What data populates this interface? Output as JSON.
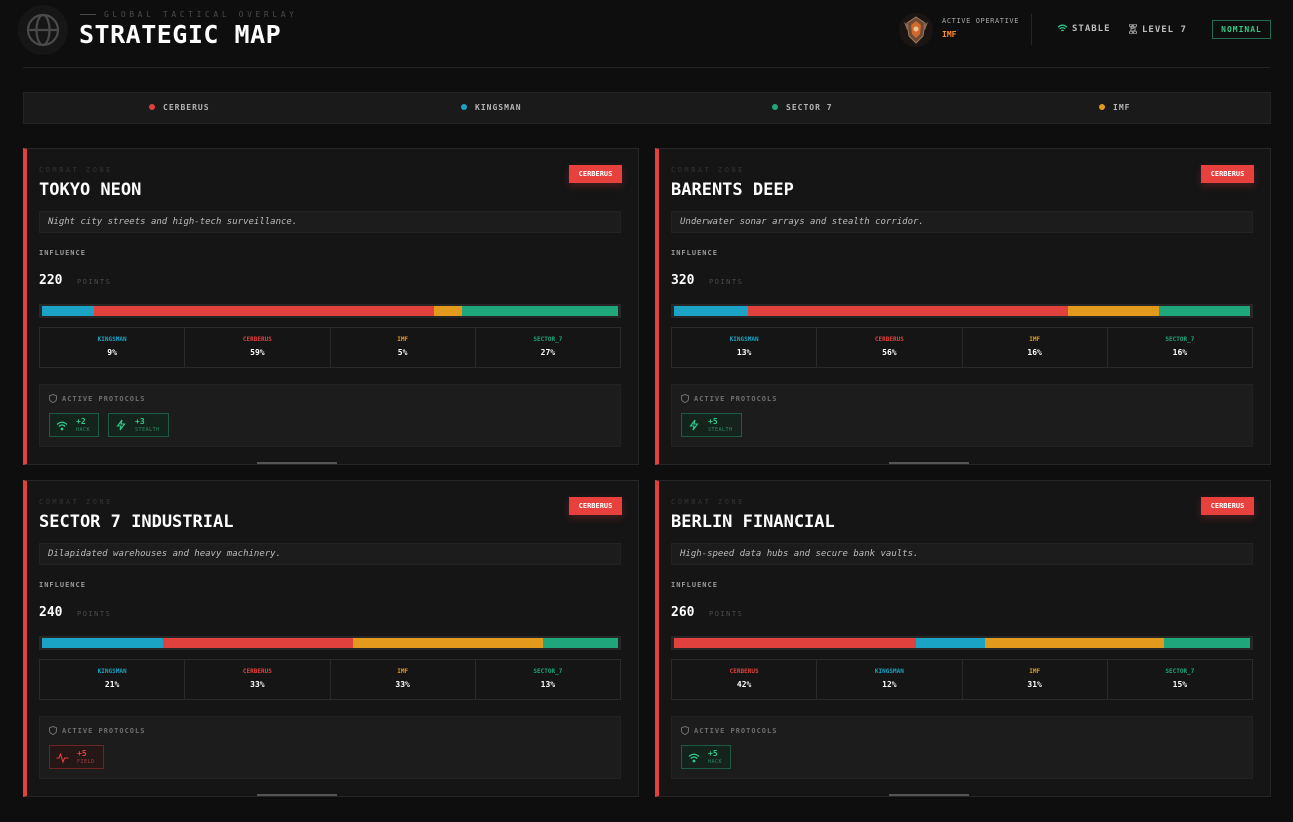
{
  "header": {
    "subtitle": "GLOBAL TACTICAL OVERLAY",
    "title": "STRATEGIC MAP",
    "operative_label": "ACTIVE OPERATIVE",
    "operative_value": "IMF",
    "stable_label": "STABLE",
    "level_label": "LEVEL 7",
    "status": "NOMINAL"
  },
  "colors": {
    "cerberus": "#e0413d",
    "kingsman": "#1aa3c4",
    "sector_7": "#1fa67a",
    "imf": "#e39a1c"
  },
  "legend": [
    {
      "label": "CERBERUS",
      "color": "#e0413d"
    },
    {
      "label": "KINGSMAN",
      "color": "#1aa3c4"
    },
    {
      "label": "SECTOR 7",
      "color": "#1fa67a"
    },
    {
      "label": "IMF",
      "color": "#e39a1c"
    }
  ],
  "zones": [
    {
      "zone_label": "COMBAT ZONE",
      "name": "TOKYO NEON",
      "owner": "CERBERUS",
      "description": "Night city streets and high-tech surveillance.",
      "influence_label": "INFLUENCE",
      "points": "220",
      "points_unit": "POINTS",
      "shares": [
        {
          "name": "KINGSMAN",
          "value": "9%",
          "pct": 9,
          "color": "#1aa3c4"
        },
        {
          "name": "CERBERUS",
          "value": "59%",
          "pct": 59,
          "color": "#e0413d"
        },
        {
          "name": "IMF",
          "value": "5%",
          "pct": 5,
          "color": "#e39a1c"
        },
        {
          "name": "SECTOR_7",
          "value": "27%",
          "pct": 27,
          "color": "#1fa67a"
        }
      ],
      "protocols_label": "ACTIVE PROTOCOLS",
      "protocols": [
        {
          "value": "+2",
          "type": "HACK",
          "icon": "wifi-icon",
          "tone": "green"
        },
        {
          "value": "+3",
          "type": "STEALTH",
          "icon": "bolt-icon",
          "tone": "green"
        }
      ]
    },
    {
      "zone_label": "COMBAT ZONE",
      "name": "BARENTS DEEP",
      "owner": "CERBERUS",
      "description": "Underwater sonar arrays and stealth corridor.",
      "influence_label": "INFLUENCE",
      "points": "320",
      "points_unit": "POINTS",
      "shares": [
        {
          "name": "KINGSMAN",
          "value": "13%",
          "pct": 13,
          "color": "#1aa3c4"
        },
        {
          "name": "CERBERUS",
          "value": "56%",
          "pct": 56,
          "color": "#e0413d"
        },
        {
          "name": "IMF",
          "value": "16%",
          "pct": 16,
          "color": "#e39a1c"
        },
        {
          "name": "SECTOR_7",
          "value": "16%",
          "pct": 16,
          "color": "#1fa67a"
        }
      ],
      "protocols_label": "ACTIVE PROTOCOLS",
      "protocols": [
        {
          "value": "+5",
          "type": "STEALTH",
          "icon": "bolt-icon",
          "tone": "green"
        }
      ]
    },
    {
      "zone_label": "COMBAT ZONE",
      "name": "SECTOR 7 INDUSTRIAL",
      "owner": "CERBERUS",
      "description": "Dilapidated warehouses and heavy machinery.",
      "influence_label": "INFLUENCE",
      "points": "240",
      "points_unit": "POINTS",
      "shares": [
        {
          "name": "KINGSMAN",
          "value": "21%",
          "pct": 21,
          "color": "#1aa3c4"
        },
        {
          "name": "CERBERUS",
          "value": "33%",
          "pct": 33,
          "color": "#e0413d"
        },
        {
          "name": "IMF",
          "value": "33%",
          "pct": 33,
          "color": "#e39a1c"
        },
        {
          "name": "SECTOR_7",
          "value": "13%",
          "pct": 13,
          "color": "#1fa67a"
        }
      ],
      "protocols_label": "ACTIVE PROTOCOLS",
      "protocols": [
        {
          "value": "+5",
          "type": "FIELD",
          "icon": "pulse-icon",
          "tone": "red"
        }
      ]
    },
    {
      "zone_label": "COMBAT ZONE",
      "name": "BERLIN FINANCIAL",
      "owner": "CERBERUS",
      "description": "High-speed data hubs and secure bank vaults.",
      "influence_label": "INFLUENCE",
      "points": "260",
      "points_unit": "POINTS",
      "shares": [
        {
          "name": "CERBERUS",
          "value": "42%",
          "pct": 42,
          "color": "#e0413d"
        },
        {
          "name": "KINGSMAN",
          "value": "12%",
          "pct": 12,
          "color": "#1aa3c4"
        },
        {
          "name": "IMF",
          "value": "31%",
          "pct": 31,
          "color": "#e39a1c"
        },
        {
          "name": "SECTOR_7",
          "value": "15%",
          "pct": 15,
          "color": "#1fa67a"
        }
      ],
      "protocols_label": "ACTIVE PROTOCOLS",
      "protocols": [
        {
          "value": "+5",
          "type": "HACK",
          "icon": "wifi-icon",
          "tone": "green"
        }
      ]
    }
  ]
}
